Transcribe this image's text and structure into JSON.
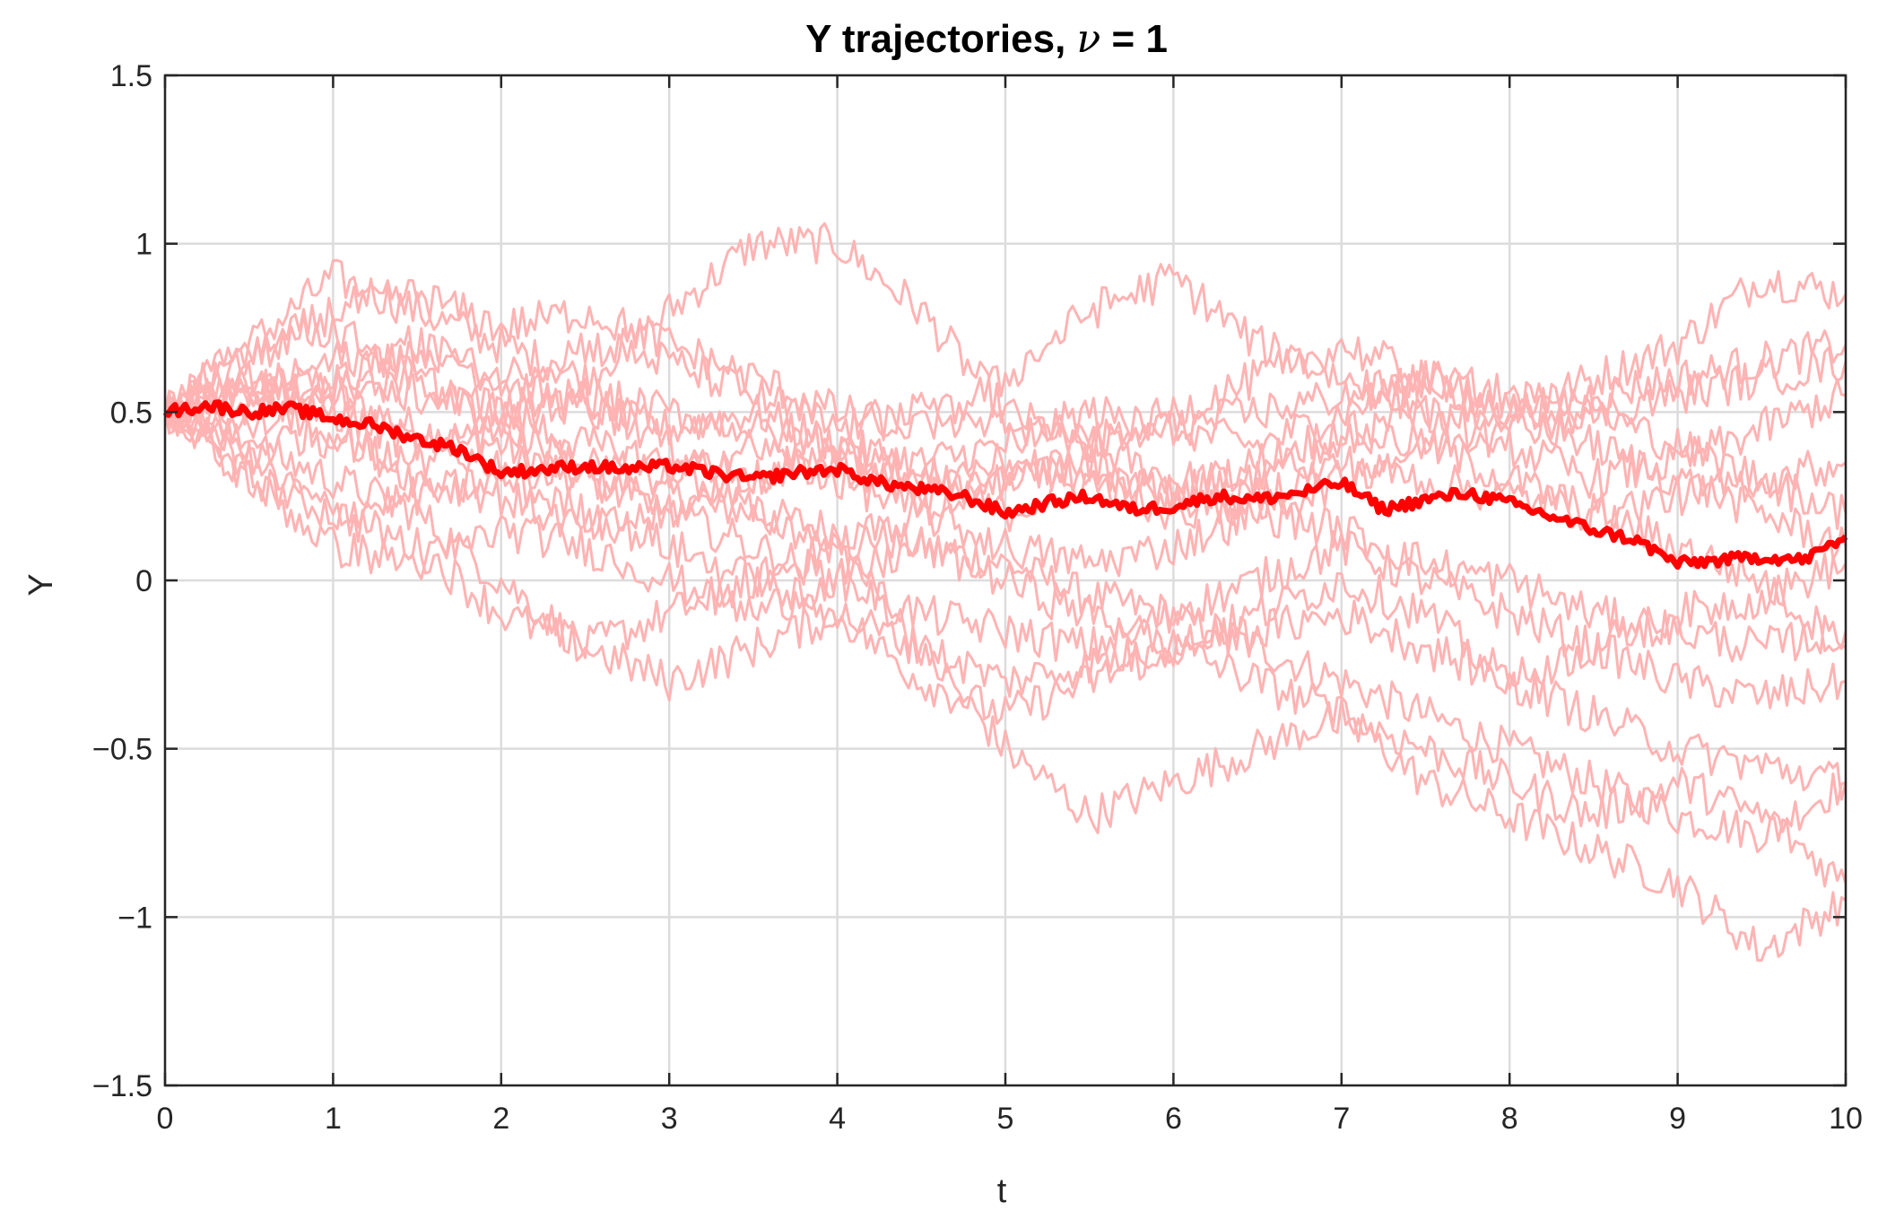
{
  "chart_data": {
    "type": "line",
    "title_prefix": "Y trajectories, ",
    "title_symbol": "ν",
    "title_suffix": " = 1",
    "xlabel": "t",
    "ylabel": "Y",
    "xlim": [
      0,
      10
    ],
    "ylim": [
      -1.5,
      1.5
    ],
    "xticks": [
      0,
      1,
      2,
      3,
      4,
      5,
      6,
      7,
      8,
      9,
      10
    ],
    "xtick_labels": [
      "0",
      "1",
      "2",
      "3",
      "4",
      "5",
      "6",
      "7",
      "8",
      "9",
      "10"
    ],
    "yticks": [
      -1.5,
      -1,
      -0.5,
      0,
      0.5,
      1,
      1.5
    ],
    "ytick_labels": [
      "−1.5",
      "−1",
      "−0.5",
      "0",
      "0.5",
      "1",
      "1.5"
    ],
    "grid": true,
    "colors": {
      "trajectory": "#ffb3b3",
      "mean": "#ff0000"
    },
    "trajectories": [
      {
        "x": [
          0,
          0.5,
          1,
          1.5,
          2,
          2.5,
          3,
          3.5,
          4,
          4.5,
          5,
          5.5,
          6,
          6.5,
          7,
          7.5,
          8,
          8.5,
          9,
          9.5,
          10
        ],
        "values": [
          0.5,
          0.6,
          0.55,
          0.45,
          0.4,
          0.3,
          0.25,
          0.2,
          0.15,
          0.1,
          0.05,
          -0.05,
          -0.1,
          -0.2,
          -0.3,
          -0.4,
          -0.5,
          -0.6,
          -0.7,
          -0.75,
          -0.6
        ]
      },
      {
        "x": [
          0,
          0.5,
          1,
          1.5,
          2,
          2.5,
          3,
          3.5,
          4,
          4.5,
          5,
          5.5,
          6,
          6.5,
          7,
          7.5,
          8,
          8.5,
          9,
          9.5,
          10
        ],
        "values": [
          0.5,
          0.7,
          0.9,
          0.8,
          0.7,
          0.6,
          0.8,
          1.0,
          1.0,
          0.8,
          0.5,
          0.4,
          0.3,
          0.3,
          0.4,
          0.5,
          0.5,
          0.6,
          0.7,
          0.9,
          0.85
        ]
      },
      {
        "x": [
          0,
          0.5,
          1,
          1.5,
          2,
          2.5,
          3,
          3.5,
          4,
          4.5,
          5,
          5.5,
          6,
          6.5,
          7,
          7.5,
          8,
          8.5,
          9,
          9.5,
          10
        ],
        "values": [
          0.5,
          0.4,
          0.3,
          0.2,
          0.0,
          -0.2,
          -0.1,
          0.0,
          0.1,
          -0.2,
          -0.5,
          -0.7,
          -0.6,
          -0.5,
          -0.4,
          -0.6,
          -0.7,
          -0.8,
          -0.9,
          -1.1,
          -0.95
        ]
      },
      {
        "x": [
          0,
          0.5,
          1,
          1.5,
          2,
          2.5,
          3,
          3.5,
          4,
          4.5,
          5,
          5.5,
          6,
          6.5,
          7,
          7.5,
          8,
          8.5,
          9,
          9.5,
          10
        ],
        "values": [
          0.5,
          0.55,
          0.6,
          0.7,
          0.6,
          0.5,
          0.45,
          0.5,
          0.4,
          0.35,
          0.4,
          0.5,
          0.45,
          0.4,
          0.5,
          0.6,
          0.5,
          0.55,
          0.6,
          0.65,
          0.7
        ]
      },
      {
        "x": [
          0,
          0.5,
          1,
          1.5,
          2,
          2.5,
          3,
          3.5,
          4,
          4.5,
          5,
          5.5,
          6,
          6.5,
          7,
          7.5,
          8,
          8.5,
          9,
          9.5,
          10
        ],
        "values": [
          0.5,
          0.3,
          0.2,
          0.1,
          -0.1,
          -0.2,
          -0.3,
          -0.2,
          -0.1,
          -0.3,
          -0.4,
          -0.3,
          -0.2,
          -0.3,
          -0.4,
          -0.5,
          -0.6,
          -0.7,
          -0.6,
          -0.7,
          -0.9
        ]
      },
      {
        "x": [
          0,
          0.5,
          1,
          1.5,
          2,
          2.5,
          3,
          3.5,
          4,
          4.5,
          5,
          5.5,
          6,
          6.5,
          7,
          7.5,
          8,
          8.5,
          9,
          9.5,
          10
        ],
        "values": [
          0.5,
          0.6,
          0.5,
          0.4,
          0.35,
          0.3,
          0.2,
          0.1,
          0.0,
          -0.1,
          -0.15,
          -0.2,
          -0.1,
          0.0,
          0.1,
          0.0,
          -0.1,
          -0.2,
          -0.3,
          -0.35,
          -0.3
        ]
      },
      {
        "x": [
          0,
          0.5,
          1,
          1.5,
          2,
          2.5,
          3,
          3.5,
          4,
          4.5,
          5,
          5.5,
          6,
          6.5,
          7,
          7.5,
          8,
          8.5,
          9,
          9.5,
          10
        ],
        "values": [
          0.5,
          0.65,
          0.8,
          0.85,
          0.75,
          0.8,
          0.7,
          0.6,
          0.5,
          0.45,
          0.6,
          0.8,
          0.9,
          0.7,
          0.6,
          0.5,
          0.4,
          0.3,
          0.35,
          0.45,
          0.55
        ]
      },
      {
        "x": [
          0,
          0.5,
          1,
          1.5,
          2,
          2.5,
          3,
          3.5,
          4,
          4.5,
          5,
          5.5,
          6,
          6.5,
          7,
          7.5,
          8,
          8.5,
          9,
          9.5,
          10
        ],
        "values": [
          0.5,
          0.4,
          0.45,
          0.3,
          0.25,
          0.15,
          0.2,
          0.3,
          0.4,
          0.3,
          0.2,
          0.3,
          0.25,
          0.35,
          0.45,
          0.4,
          0.3,
          0.2,
          0.1,
          0.0,
          -0.2
        ]
      },
      {
        "x": [
          0,
          0.5,
          1,
          1.5,
          2,
          2.5,
          3,
          3.5,
          4,
          4.5,
          5,
          5.5,
          6,
          6.5,
          7,
          7.5,
          8,
          8.5,
          9,
          9.5,
          10
        ],
        "values": [
          0.5,
          0.5,
          0.6,
          0.55,
          0.5,
          0.4,
          0.35,
          0.2,
          0.1,
          0.2,
          0.3,
          0.4,
          0.5,
          0.6,
          0.7,
          0.6,
          0.5,
          0.4,
          0.3,
          0.2,
          0.1
        ]
      },
      {
        "x": [
          0,
          0.5,
          1,
          1.5,
          2,
          2.5,
          3,
          3.5,
          4,
          4.5,
          5,
          5.5,
          6,
          6.5,
          7,
          7.5,
          8,
          8.5,
          9,
          9.5,
          10
        ],
        "values": [
          0.5,
          0.35,
          0.2,
          0.25,
          0.3,
          0.2,
          0.1,
          0.0,
          -0.1,
          -0.2,
          -0.3,
          -0.25,
          -0.2,
          -0.1,
          0.0,
          -0.1,
          -0.3,
          -0.4,
          -0.5,
          -0.55,
          -0.6
        ]
      },
      {
        "x": [
          0,
          0.5,
          1,
          1.5,
          2,
          2.5,
          3,
          3.5,
          4,
          4.5,
          5,
          5.5,
          6,
          6.5,
          7,
          7.5,
          8,
          8.5,
          9,
          9.5,
          10
        ],
        "values": [
          0.5,
          0.7,
          0.75,
          0.6,
          0.5,
          0.55,
          0.4,
          0.3,
          0.35,
          0.25,
          0.3,
          0.35,
          0.25,
          0.2,
          0.3,
          0.4,
          0.45,
          0.5,
          0.4,
          0.3,
          0.35
        ]
      },
      {
        "x": [
          0,
          0.5,
          1,
          1.5,
          2,
          2.5,
          3,
          3.5,
          4,
          4.5,
          5,
          5.5,
          6,
          6.5,
          7,
          7.5,
          8,
          8.5,
          9,
          9.5,
          10
        ],
        "values": [
          0.5,
          0.45,
          0.55,
          0.6,
          0.45,
          0.35,
          0.3,
          0.4,
          0.3,
          0.2,
          0.1,
          0.05,
          0.1,
          0.2,
          0.15,
          0.05,
          0.0,
          -0.1,
          -0.15,
          -0.2,
          -0.15
        ]
      },
      {
        "x": [
          0,
          0.5,
          1,
          1.5,
          2,
          2.5,
          3,
          3.5,
          4,
          4.5,
          5,
          5.5,
          6,
          6.5,
          7,
          7.5,
          8,
          8.5,
          9,
          9.5,
          10
        ],
        "values": [
          0.5,
          0.6,
          0.4,
          0.35,
          0.45,
          0.55,
          0.5,
          0.45,
          0.4,
          0.3,
          0.35,
          0.3,
          0.2,
          0.25,
          0.35,
          0.3,
          0.25,
          0.2,
          0.25,
          0.3,
          0.2
        ]
      },
      {
        "x": [
          0,
          0.5,
          1,
          1.5,
          2,
          2.5,
          3,
          3.5,
          4,
          4.5,
          5,
          5.5,
          6,
          6.5,
          7,
          7.5,
          8,
          8.5,
          9,
          9.5,
          10
        ],
        "values": [
          0.5,
          0.3,
          0.1,
          0.05,
          0.15,
          0.1,
          0.0,
          -0.1,
          0.0,
          0.1,
          0.0,
          -0.1,
          -0.2,
          -0.15,
          -0.1,
          -0.2,
          -0.3,
          -0.2,
          -0.1,
          -0.05,
          0.05
        ]
      },
      {
        "x": [
          0,
          0.5,
          1,
          1.5,
          2,
          2.5,
          3,
          3.5,
          4,
          4.5,
          5,
          5.5,
          6,
          6.5,
          7,
          7.5,
          8,
          8.5,
          9,
          9.5,
          10
        ],
        "values": [
          0.5,
          0.55,
          0.65,
          0.7,
          0.6,
          0.7,
          0.65,
          0.55,
          0.45,
          0.5,
          0.45,
          0.4,
          0.45,
          0.5,
          0.55,
          0.6,
          0.55,
          0.5,
          0.55,
          0.6,
          0.65
        ]
      }
    ],
    "mean": {
      "x": [
        0,
        0.25,
        0.5,
        0.75,
        1,
        1.25,
        1.5,
        1.75,
        2,
        2.25,
        2.5,
        2.75,
        3,
        3.25,
        3.5,
        3.75,
        4,
        4.25,
        4.5,
        4.75,
        5,
        5.25,
        5.5,
        5.75,
        6,
        6.25,
        6.5,
        6.75,
        7,
        7.25,
        7.5,
        7.75,
        8,
        8.25,
        8.5,
        8.75,
        9,
        9.25,
        9.5,
        9.75,
        10
      ],
      "values": [
        0.5,
        0.52,
        0.5,
        0.51,
        0.48,
        0.46,
        0.42,
        0.39,
        0.32,
        0.33,
        0.34,
        0.33,
        0.34,
        0.32,
        0.3,
        0.32,
        0.33,
        0.29,
        0.27,
        0.25,
        0.2,
        0.23,
        0.25,
        0.21,
        0.22,
        0.25,
        0.24,
        0.26,
        0.29,
        0.21,
        0.24,
        0.26,
        0.23,
        0.19,
        0.15,
        0.12,
        0.05,
        0.06,
        0.07,
        0.06,
        0.13
      ]
    }
  }
}
